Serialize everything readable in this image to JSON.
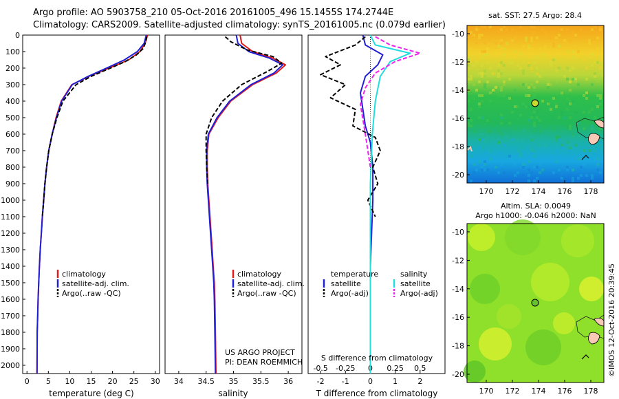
{
  "header": {
    "line1": "Argo profile: AO 5903758_210 05-Oct-2016 20161005_496 15.1455S 174.2744E",
    "line2": "Climatology: CARS2009. Satellite-adjusted climatology: synTS_20161005.nc (0.079d earlier)"
  },
  "colors": {
    "climatology": "#e31a1c",
    "satellite": "#1f1fd6",
    "argo": "#000000",
    "satellite_salinity": "#22dddd",
    "argo_salinity_adj": "#ee22ee"
  },
  "chart_data": [
    {
      "id": "temperature",
      "type": "line",
      "xlabel": "temperature (deg C)",
      "ylabel": "",
      "xlim": [
        -1,
        31
      ],
      "ylim": [
        2050,
        0
      ],
      "xticks": [
        0,
        5,
        10,
        15,
        20,
        25,
        30
      ],
      "yticks": [
        0,
        100,
        200,
        300,
        400,
        500,
        600,
        700,
        800,
        900,
        1000,
        1100,
        1200,
        1300,
        1400,
        1500,
        1600,
        1700,
        1800,
        1900,
        2000
      ],
      "legend": {
        "position": "lower-center",
        "entries": [
          "climatology",
          "satellite-adj. clim.",
          "Argo(..raw -QC)"
        ]
      },
      "series": [
        {
          "name": "climatology",
          "color": "#e31a1c",
          "x": [
            28.2,
            27.6,
            26.4,
            23.8,
            19.2,
            14.5,
            10.5,
            8.0,
            6.8,
            5.9,
            5.1,
            4.6,
            4.2,
            3.9,
            3.6,
            3.35,
            3.1,
            2.9,
            2.75,
            2.6,
            2.5,
            2.4,
            2.35
          ],
          "y": [
            0,
            50,
            100,
            150,
            200,
            250,
            300,
            400,
            500,
            600,
            700,
            800,
            900,
            1000,
            1100,
            1200,
            1300,
            1400,
            1500,
            1600,
            1700,
            1800,
            2050
          ]
        },
        {
          "name": "satellite-adj. clim.",
          "color": "#1f1fd6",
          "x": [
            27.9,
            27.4,
            25.8,
            22.8,
            18.6,
            14.3,
            10.6,
            8.1,
            6.9,
            5.9,
            5.1,
            4.6,
            4.2,
            3.9,
            3.6,
            3.35,
            3.1,
            2.9,
            2.75,
            2.6,
            2.5,
            2.4,
            2.35
          ],
          "y": [
            0,
            50,
            100,
            150,
            200,
            250,
            300,
            400,
            500,
            600,
            700,
            800,
            900,
            1000,
            1100,
            1200,
            1300,
            1400,
            1500,
            1600,
            1700,
            1800,
            2050
          ]
        },
        {
          "name": "Argo(..raw -QC)",
          "color": "#000000",
          "dash": true,
          "x": [
            28.0,
            27.8,
            27.2,
            25.6,
            23.0,
            19.5,
            15.0,
            11.5,
            8.4,
            7.0,
            5.9,
            5.1,
            4.6,
            4.2,
            3.9,
            3.6
          ],
          "y": [
            10,
            40,
            80,
            120,
            160,
            200,
            250,
            300,
            400,
            500,
            600,
            700,
            800,
            900,
            1000,
            1100
          ]
        }
      ]
    },
    {
      "id": "salinity",
      "type": "line",
      "xlabel": "salinity",
      "ylabel": "",
      "xlim": [
        33.75,
        36.25
      ],
      "ylim": [
        2050,
        0
      ],
      "xticks": [
        34,
        34.5,
        35,
        35.5,
        36
      ],
      "xticklabels": [
        "34",
        "34.5",
        "35",
        "35.5",
        "36"
      ],
      "legend": {
        "position": "lower-center",
        "entries": [
          "climatology",
          "satellite-adj. clim.",
          "Argo(..raw -QC)"
        ]
      },
      "annotation": [
        "US ARGO PROJECT",
        "PI: DEAN ROEMMICH"
      ],
      "series": [
        {
          "name": "climatology",
          "color": "#e31a1c",
          "x": [
            35.12,
            35.15,
            35.35,
            35.72,
            35.95,
            35.78,
            35.35,
            34.95,
            34.72,
            34.55,
            34.52,
            34.52,
            34.53,
            34.55,
            34.57,
            34.59,
            34.61,
            34.63,
            34.65,
            34.66,
            34.67,
            34.68
          ],
          "y": [
            0,
            50,
            100,
            140,
            180,
            230,
            300,
            400,
            500,
            600,
            700,
            800,
            900,
            1000,
            1100,
            1200,
            1300,
            1400,
            1500,
            1600,
            1800,
            2050
          ]
        },
        {
          "name": "satellite-adj. clim.",
          "color": "#1f1fd6",
          "x": [
            35.05,
            35.08,
            35.28,
            35.66,
            35.9,
            35.74,
            35.32,
            34.93,
            34.7,
            34.54,
            34.51,
            34.51,
            34.52,
            34.54,
            34.56,
            34.58,
            34.6,
            34.62,
            34.64,
            34.65,
            34.66,
            34.67
          ],
          "y": [
            0,
            50,
            100,
            140,
            180,
            230,
            300,
            400,
            500,
            600,
            700,
            800,
            900,
            1000,
            1100,
            1200,
            1300,
            1400,
            1500,
            1600,
            1800,
            2050
          ]
        },
        {
          "name": "Argo(..raw -QC)",
          "color": "#000000",
          "dash": true,
          "x": [
            34.85,
            34.95,
            35.25,
            35.72,
            35.88,
            35.62,
            35.15,
            34.8,
            34.6,
            34.5,
            34.5,
            34.51,
            34.53
          ],
          "y": [
            10,
            40,
            90,
            130,
            170,
            220,
            300,
            400,
            500,
            600,
            700,
            800,
            900
          ]
        }
      ]
    },
    {
      "id": "difference",
      "type": "line",
      "xlabel": "T difference from climatology",
      "x2label": "S difference from climatology",
      "ylabel": "",
      "xlim": [
        -2.5,
        3
      ],
      "ylim": [
        2050,
        0
      ],
      "xticks": [
        -2,
        -1,
        0,
        1,
        2
      ],
      "x2lim": [
        -0.625,
        0.75
      ],
      "x2ticks": [
        -0.5,
        -0.25,
        0,
        0.25,
        0.5
      ],
      "x2ticklabels": [
        "-0.5",
        "-0.25",
        "0",
        "0.25",
        "0.5"
      ],
      "legend": {
        "position": "lower-center",
        "headers": [
          "temperature",
          "salinity"
        ],
        "entries": [
          "satellite",
          "Argo(-adj)",
          "satellite",
          "Argo(-adj)"
        ]
      },
      "series": [
        {
          "name": "satellite",
          "group": "temperature",
          "color": "#1f1fd6",
          "x": [
            -0.3,
            -0.2,
            0.5,
            0.3,
            -0.2,
            -0.4,
            -0.3,
            -0.2,
            0.0,
            0.1,
            0.1,
            0.05,
            0.0,
            0.0,
            0.0,
            0.0
          ],
          "y": [
            0,
            60,
            120,
            180,
            250,
            350,
            450,
            550,
            650,
            800,
            1000,
            1200,
            1400,
            1600,
            1800,
            2050
          ]
        },
        {
          "name": "Argo(-adj)",
          "group": "temperature",
          "color": "#000000",
          "dash": true,
          "x": [
            -0.2,
            -0.6,
            -1.8,
            -1.2,
            -2.0,
            -1.0,
            -1.6,
            -0.6,
            -0.7,
            0.2,
            0.4,
            0.1,
            0.3,
            -0.1,
            0.2
          ],
          "y": [
            10,
            60,
            130,
            180,
            240,
            300,
            380,
            450,
            550,
            620,
            700,
            800,
            900,
            1000,
            1100
          ]
        },
        {
          "name": "satellite",
          "group": "salinity",
          "color": "#22dddd",
          "x2": [
            0.0,
            0.05,
            0.4,
            0.2,
            0.1,
            0.05,
            0.02,
            0.0,
            0.0,
            0.0
          ],
          "y": [
            0,
            60,
            110,
            160,
            250,
            400,
            600,
            900,
            1400,
            2050
          ]
        },
        {
          "name": "Argo(-adj)",
          "group": "salinity",
          "color": "#ee22ee",
          "dash": true,
          "x2": [
            0.05,
            0.2,
            0.5,
            0.25,
            0.05,
            -0.05,
            -0.1,
            -0.05,
            0.0
          ],
          "y": [
            10,
            60,
            110,
            160,
            230,
            320,
            420,
            600,
            800
          ]
        }
      ]
    }
  ],
  "maps": [
    {
      "id": "sst-map",
      "title": "sat. SST: 27.5 Argo: 28.4",
      "xticks": [
        "170",
        "172",
        "174",
        "176",
        "178"
      ],
      "yticks": [
        "-10",
        "-12",
        "-14",
        "-16",
        "-18",
        "-20"
      ]
    },
    {
      "id": "sla-map",
      "title_line1": "Altim. SLA: 0.0049",
      "title_line2": "Argo h1000: -0.046 h2000: NaN",
      "xticks": [
        "170",
        "172",
        "174",
        "176",
        "178"
      ],
      "yticks": [
        "-10",
        "-12",
        "-14",
        "-16",
        "-18",
        "-20"
      ]
    }
  ],
  "footer": {
    "credit": "©IMOS 12-Oct-2016 20:39:45"
  }
}
